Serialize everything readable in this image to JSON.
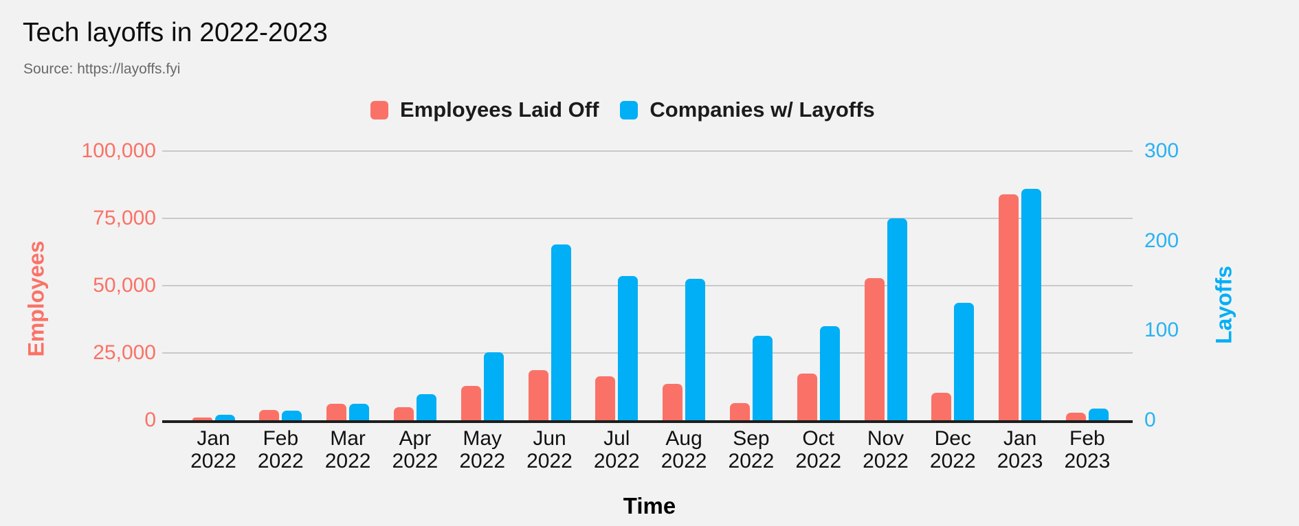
{
  "title": "Tech layoffs in 2022-2023",
  "subtitle": "Source: https://layoffs.fyi",
  "legend": [
    {
      "label": "Employees Laid Off",
      "color": "#FA7267"
    },
    {
      "label": "Companies w/ Layoffs",
      "color": "#00AFF5"
    }
  ],
  "axes": {
    "left": {
      "title": "Employees",
      "color": "#FA7267",
      "ticks": [
        "100,000",
        "75,000",
        "50,000",
        "25,000",
        "0"
      ]
    },
    "right": {
      "title": "Layoffs",
      "color": "#00AFF5",
      "ticks": [
        "300",
        "200",
        "100",
        "0"
      ]
    },
    "x": {
      "title": "Time"
    }
  },
  "colors": {
    "background": "#F2F2F2",
    "gridline": "#C9C9C9",
    "axis_line": "#1d1d1d",
    "employees_red": "#FA7267",
    "companies_blue": "#00AFF5"
  },
  "chart_data": {
    "type": "bar",
    "title": "Tech layoffs in 2022-2023",
    "source": "https://layoffs.fyi",
    "xlabel": "Time",
    "categories": [
      "Jan 2022",
      "Feb 2022",
      "Mar 2022",
      "Apr 2022",
      "May 2022",
      "Jun 2022",
      "Jul 2022",
      "Aug 2022",
      "Sep 2022",
      "Oct 2022",
      "Nov 2022",
      "Dec 2022",
      "Jan 2023",
      "Feb 2023"
    ],
    "series": [
      {
        "name": "Employees Laid Off",
        "axis": "left",
        "color": "#FA7267",
        "values": [
          1000,
          3800,
          6000,
          4800,
          12800,
          18500,
          16300,
          13500,
          6500,
          17300,
          52700,
          10300,
          84000,
          2700
        ]
      },
      {
        "name": "Companies w/ Layoffs",
        "axis": "right",
        "color": "#00AFF5",
        "values": [
          6,
          11,
          18,
          29,
          76,
          196,
          161,
          158,
          94,
          105,
          225,
          131,
          258,
          13
        ]
      }
    ],
    "left_axis": {
      "label": "Employees",
      "range": [
        0,
        100000
      ],
      "tick_interval": 25000
    },
    "right_axis": {
      "label": "Layoffs",
      "range": [
        0,
        300
      ],
      "tick_interval": 100
    },
    "grid": true,
    "legend_position": "top"
  }
}
